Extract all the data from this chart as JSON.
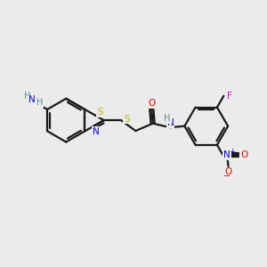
{
  "background_color": "#ebebeb",
  "bond_color": "#1a1a1a",
  "atom_colors": {
    "S": "#b8b800",
    "N": "#0000ee",
    "O": "#ee0000",
    "F": "#dd00dd",
    "H": "#4a9090",
    "C": "#1a1a1a"
  },
  "figsize": [
    3.0,
    3.0
  ],
  "dpi": 100,
  "xlim": [
    0,
    10
  ],
  "ylim": [
    0,
    10
  ]
}
